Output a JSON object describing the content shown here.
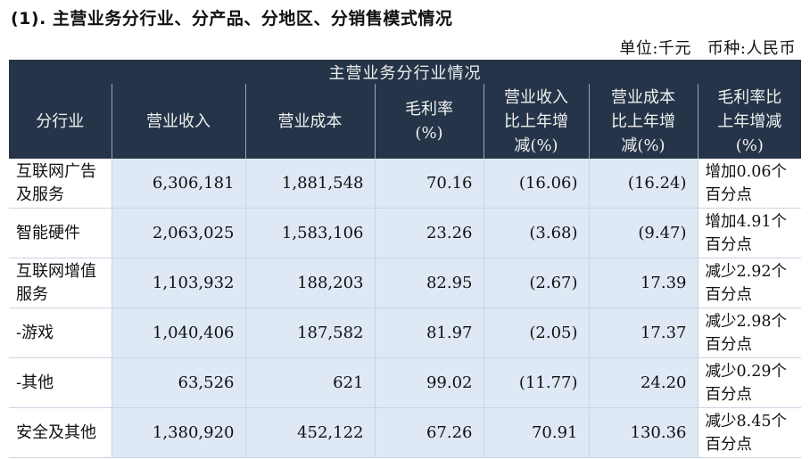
{
  "heading": "(1). 主营业务分行业、分产品、分地区、分销售模式情况",
  "unit_label": "单位:千元",
  "currency_label": "币种:人民币",
  "table": {
    "title": "主营业务分行业情况",
    "headers": [
      "分行业",
      "营业收入",
      "营业成本",
      "毛利率\n(%)",
      "营业收入\n比上年增\n减(%)",
      "营业成本\n比上年增\n减(%)",
      "毛利率比\n上年增减\n(%)"
    ],
    "rows": [
      [
        "互联网广告及服务",
        "6,306,181",
        "1,881,548",
        "70.16",
        "(16.06)",
        "(16.24)",
        "增加0.06个百分点"
      ],
      [
        "智能硬件",
        "2,063,025",
        "1,583,106",
        "23.26",
        "(3.68)",
        "(9.47)",
        "增加4.91个百分点"
      ],
      [
        "互联网增值服务",
        "1,103,932",
        "188,203",
        "82.95",
        "(2.67)",
        "17.39",
        "减少2.92个百分点"
      ],
      [
        "-游戏",
        "1,040,406",
        "187,582",
        "81.97",
        "(2.05)",
        "17.37",
        "减少2.98个百分点"
      ],
      [
        "-其他",
        "63,526",
        "621",
        "99.02",
        "(11.77)",
        "24.20",
        "减少0.29个百分点"
      ],
      [
        "安全及其他",
        "1,380,920",
        "452,122",
        "67.26",
        "70.91",
        "130.36",
        "减少8.45个百分点"
      ]
    ]
  }
}
